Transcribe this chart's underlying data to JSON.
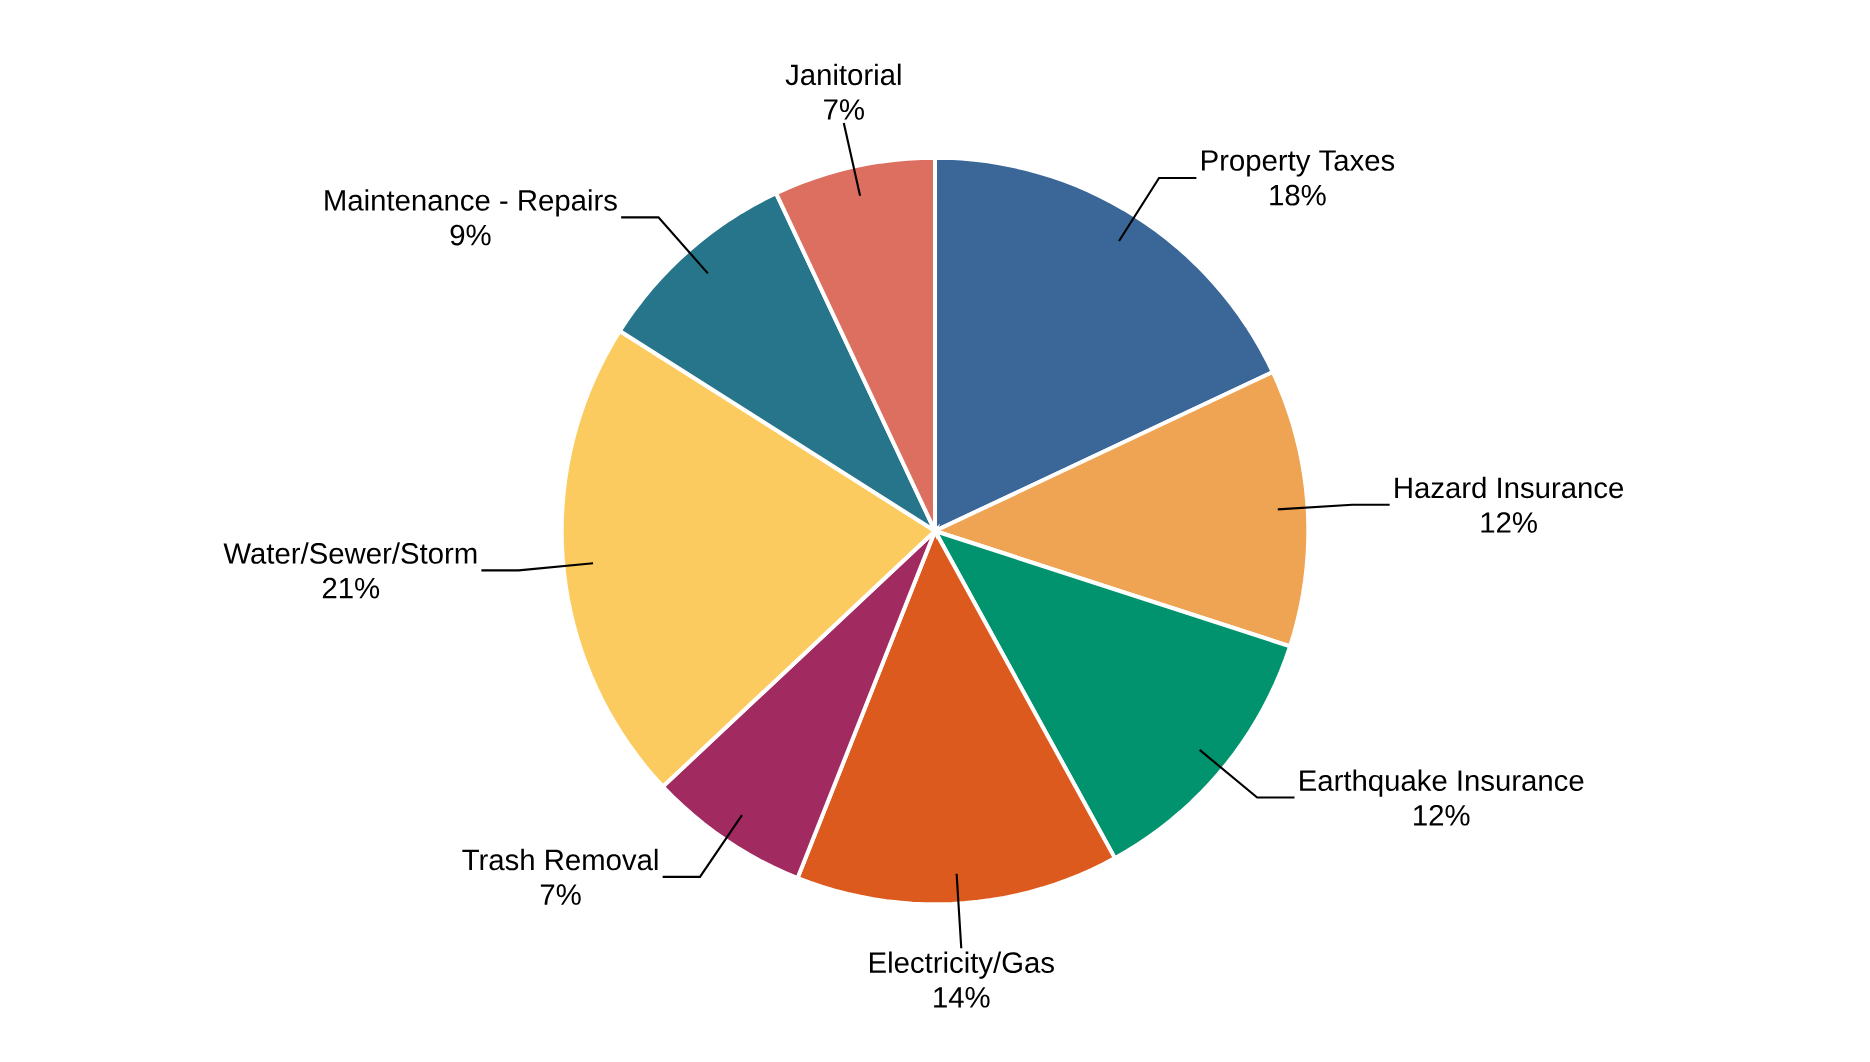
{
  "chart_data": {
    "type": "pie",
    "categories": [
      "Property Taxes",
      "Hazard Insurance",
      "Earthquake Insurance",
      "Electricity/Gas",
      "Trash Removal",
      "Water/Sewer/Storm",
      "Maintenance - Repairs",
      "Janitorial"
    ],
    "values": [
      18,
      12,
      12,
      14,
      7,
      21,
      9,
      7
    ],
    "value_labels": [
      "18%",
      "12%",
      "12%",
      "14%",
      "7%",
      "21%",
      "9%",
      "7%"
    ],
    "colors": [
      "#3a6698",
      "#eea452",
      "#00936d",
      "#dd5a1e",
      "#a12a60",
      "#fccb5f",
      "#27758b",
      "#dc6f60"
    ]
  }
}
